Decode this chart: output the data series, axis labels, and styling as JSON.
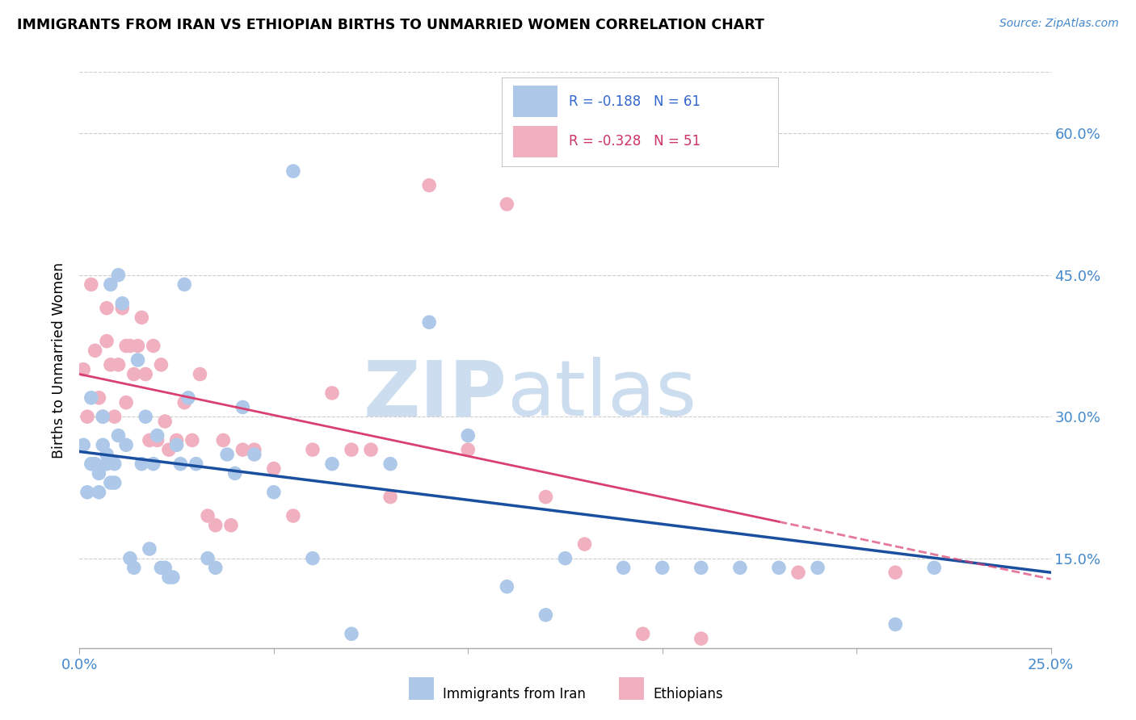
{
  "title": "IMMIGRANTS FROM IRAN VS ETHIOPIAN BIRTHS TO UNMARRIED WOMEN CORRELATION CHART",
  "source": "Source: ZipAtlas.com",
  "ylabel": "Births to Unmarried Women",
  "xlim": [
    0.0,
    0.25
  ],
  "ylim": [
    0.055,
    0.665
  ],
  "yticks": [
    0.15,
    0.3,
    0.45,
    0.6
  ],
  "ytick_labels": [
    "15.0%",
    "30.0%",
    "45.0%",
    "60.0%"
  ],
  "xticks": [
    0.0,
    0.05,
    0.1,
    0.15,
    0.2,
    0.25
  ],
  "xtick_labels": [
    "0.0%",
    "",
    "",
    "",
    "",
    "25.0%"
  ],
  "legend_blue_text": "R = -0.188   N = 61",
  "legend_pink_text": "R = -0.328   N = 51",
  "legend_label_blue": "Immigrants from Iran",
  "legend_label_pink": "Ethiopians",
  "blue_scatter_color": "#adc8e8",
  "pink_scatter_color": "#f0b0c0",
  "blue_line_color": "#1a4fa0",
  "pink_line_color": "#d94070",
  "tick_color": "#4488cc",
  "watermark": "ZIPatlas",
  "watermark_color": "#ccddf0",
  "blue_line_y0": 0.263,
  "blue_line_y1": 0.135,
  "pink_line_y0": 0.345,
  "pink_line_y1": 0.128,
  "blue_x": [
    0.001,
    0.002,
    0.003,
    0.003,
    0.004,
    0.005,
    0.005,
    0.006,
    0.006,
    0.007,
    0.007,
    0.008,
    0.008,
    0.009,
    0.009,
    0.01,
    0.01,
    0.011,
    0.012,
    0.013,
    0.014,
    0.015,
    0.016,
    0.017,
    0.018,
    0.019,
    0.02,
    0.021,
    0.022,
    0.023,
    0.024,
    0.025,
    0.026,
    0.027,
    0.028,
    0.03,
    0.033,
    0.035,
    0.038,
    0.04,
    0.042,
    0.045,
    0.05,
    0.055,
    0.06,
    0.065,
    0.07,
    0.08,
    0.09,
    0.1,
    0.11,
    0.12,
    0.125,
    0.14,
    0.15,
    0.16,
    0.17,
    0.18,
    0.19,
    0.21,
    0.22
  ],
  "blue_y": [
    0.27,
    0.22,
    0.32,
    0.25,
    0.25,
    0.24,
    0.22,
    0.3,
    0.27,
    0.25,
    0.26,
    0.23,
    0.44,
    0.25,
    0.23,
    0.45,
    0.28,
    0.42,
    0.27,
    0.15,
    0.14,
    0.36,
    0.25,
    0.3,
    0.16,
    0.25,
    0.28,
    0.14,
    0.14,
    0.13,
    0.13,
    0.27,
    0.25,
    0.44,
    0.32,
    0.25,
    0.15,
    0.14,
    0.26,
    0.24,
    0.31,
    0.26,
    0.22,
    0.56,
    0.15,
    0.25,
    0.07,
    0.25,
    0.4,
    0.28,
    0.12,
    0.09,
    0.15,
    0.14,
    0.14,
    0.14,
    0.14,
    0.14,
    0.14,
    0.08,
    0.14
  ],
  "pink_x": [
    0.001,
    0.002,
    0.003,
    0.004,
    0.005,
    0.006,
    0.007,
    0.007,
    0.008,
    0.009,
    0.01,
    0.011,
    0.012,
    0.012,
    0.013,
    0.014,
    0.015,
    0.016,
    0.017,
    0.018,
    0.019,
    0.02,
    0.021,
    0.022,
    0.023,
    0.025,
    0.027,
    0.029,
    0.031,
    0.033,
    0.035,
    0.037,
    0.039,
    0.042,
    0.045,
    0.05,
    0.055,
    0.06,
    0.065,
    0.07,
    0.075,
    0.08,
    0.09,
    0.1,
    0.11,
    0.12,
    0.13,
    0.145,
    0.16,
    0.185,
    0.21
  ],
  "pink_y": [
    0.35,
    0.3,
    0.44,
    0.37,
    0.32,
    0.3,
    0.38,
    0.415,
    0.355,
    0.3,
    0.355,
    0.415,
    0.315,
    0.375,
    0.375,
    0.345,
    0.375,
    0.405,
    0.345,
    0.275,
    0.375,
    0.275,
    0.355,
    0.295,
    0.265,
    0.275,
    0.315,
    0.275,
    0.345,
    0.195,
    0.185,
    0.275,
    0.185,
    0.265,
    0.265,
    0.245,
    0.195,
    0.265,
    0.325,
    0.265,
    0.265,
    0.215,
    0.545,
    0.265,
    0.525,
    0.215,
    0.165,
    0.07,
    0.065,
    0.135,
    0.135
  ]
}
